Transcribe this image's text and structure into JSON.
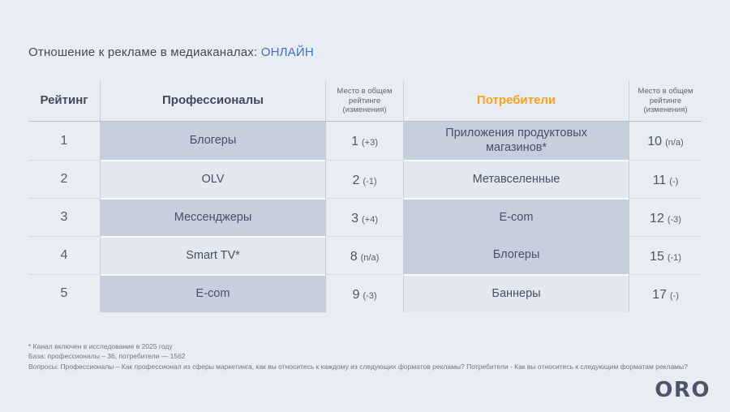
{
  "title": {
    "prefix": "Отношение к рекламе в медиаканалах: ",
    "highlight": "ОНЛАЙН"
  },
  "colors": {
    "background": "#e9edf3",
    "highlight_blue": "#3c70c4",
    "consumers_orange": "#f9a21c",
    "dark_cell": "#c5cfde",
    "light_cell": "#e2e7f0"
  },
  "table": {
    "headers": {
      "rating": "Рейтинг",
      "professionals": "Профессионалы",
      "place_professionals": "Место в общем рейтинге (изменения)",
      "consumers": "Потребители",
      "place_consumers": "Место в общем рейтинге (изменения)"
    },
    "rows": [
      {
        "rank": "1",
        "professional": "Блогеры",
        "pro_place": "1",
        "pro_change": "(+3)",
        "consumer": "Приложения продуктовых магазинов*",
        "cons_place": "10",
        "cons_change": "(n/a)"
      },
      {
        "rank": "2",
        "professional": "OLV",
        "pro_place": "2",
        "pro_change": "(-1)",
        "consumer": "Метавселенные",
        "cons_place": "11",
        "cons_change": "(-)"
      },
      {
        "rank": "3",
        "professional": "Мессенджеры",
        "pro_place": "3",
        "pro_change": "(+4)",
        "consumer": "E-com",
        "cons_place": "12",
        "cons_change": "(-3)"
      },
      {
        "rank": "4",
        "professional": "Smart TV*",
        "pro_place": "8",
        "pro_change": "(n/a)",
        "consumer": "Блогеры",
        "cons_place": "15",
        "cons_change": "(-1)"
      },
      {
        "rank": "5",
        "professional": "E-com",
        "pro_place": "9",
        "pro_change": "(-3)",
        "consumer": "Баннеры",
        "cons_place": "17",
        "cons_change": "(-)"
      }
    ]
  },
  "footnotes": [
    "* Канал включен в исследование в 2025 году",
    "База: профессионалы – 36, потребители — 1562",
    "Вопросы: Профессионалы – Как профессионал из сферы маркетинга, как вы относитесь к каждому из следующих форматов рекламы? Потребители - Как вы относитесь к следующим форматам рекламы?"
  ],
  "logo": "ORO"
}
